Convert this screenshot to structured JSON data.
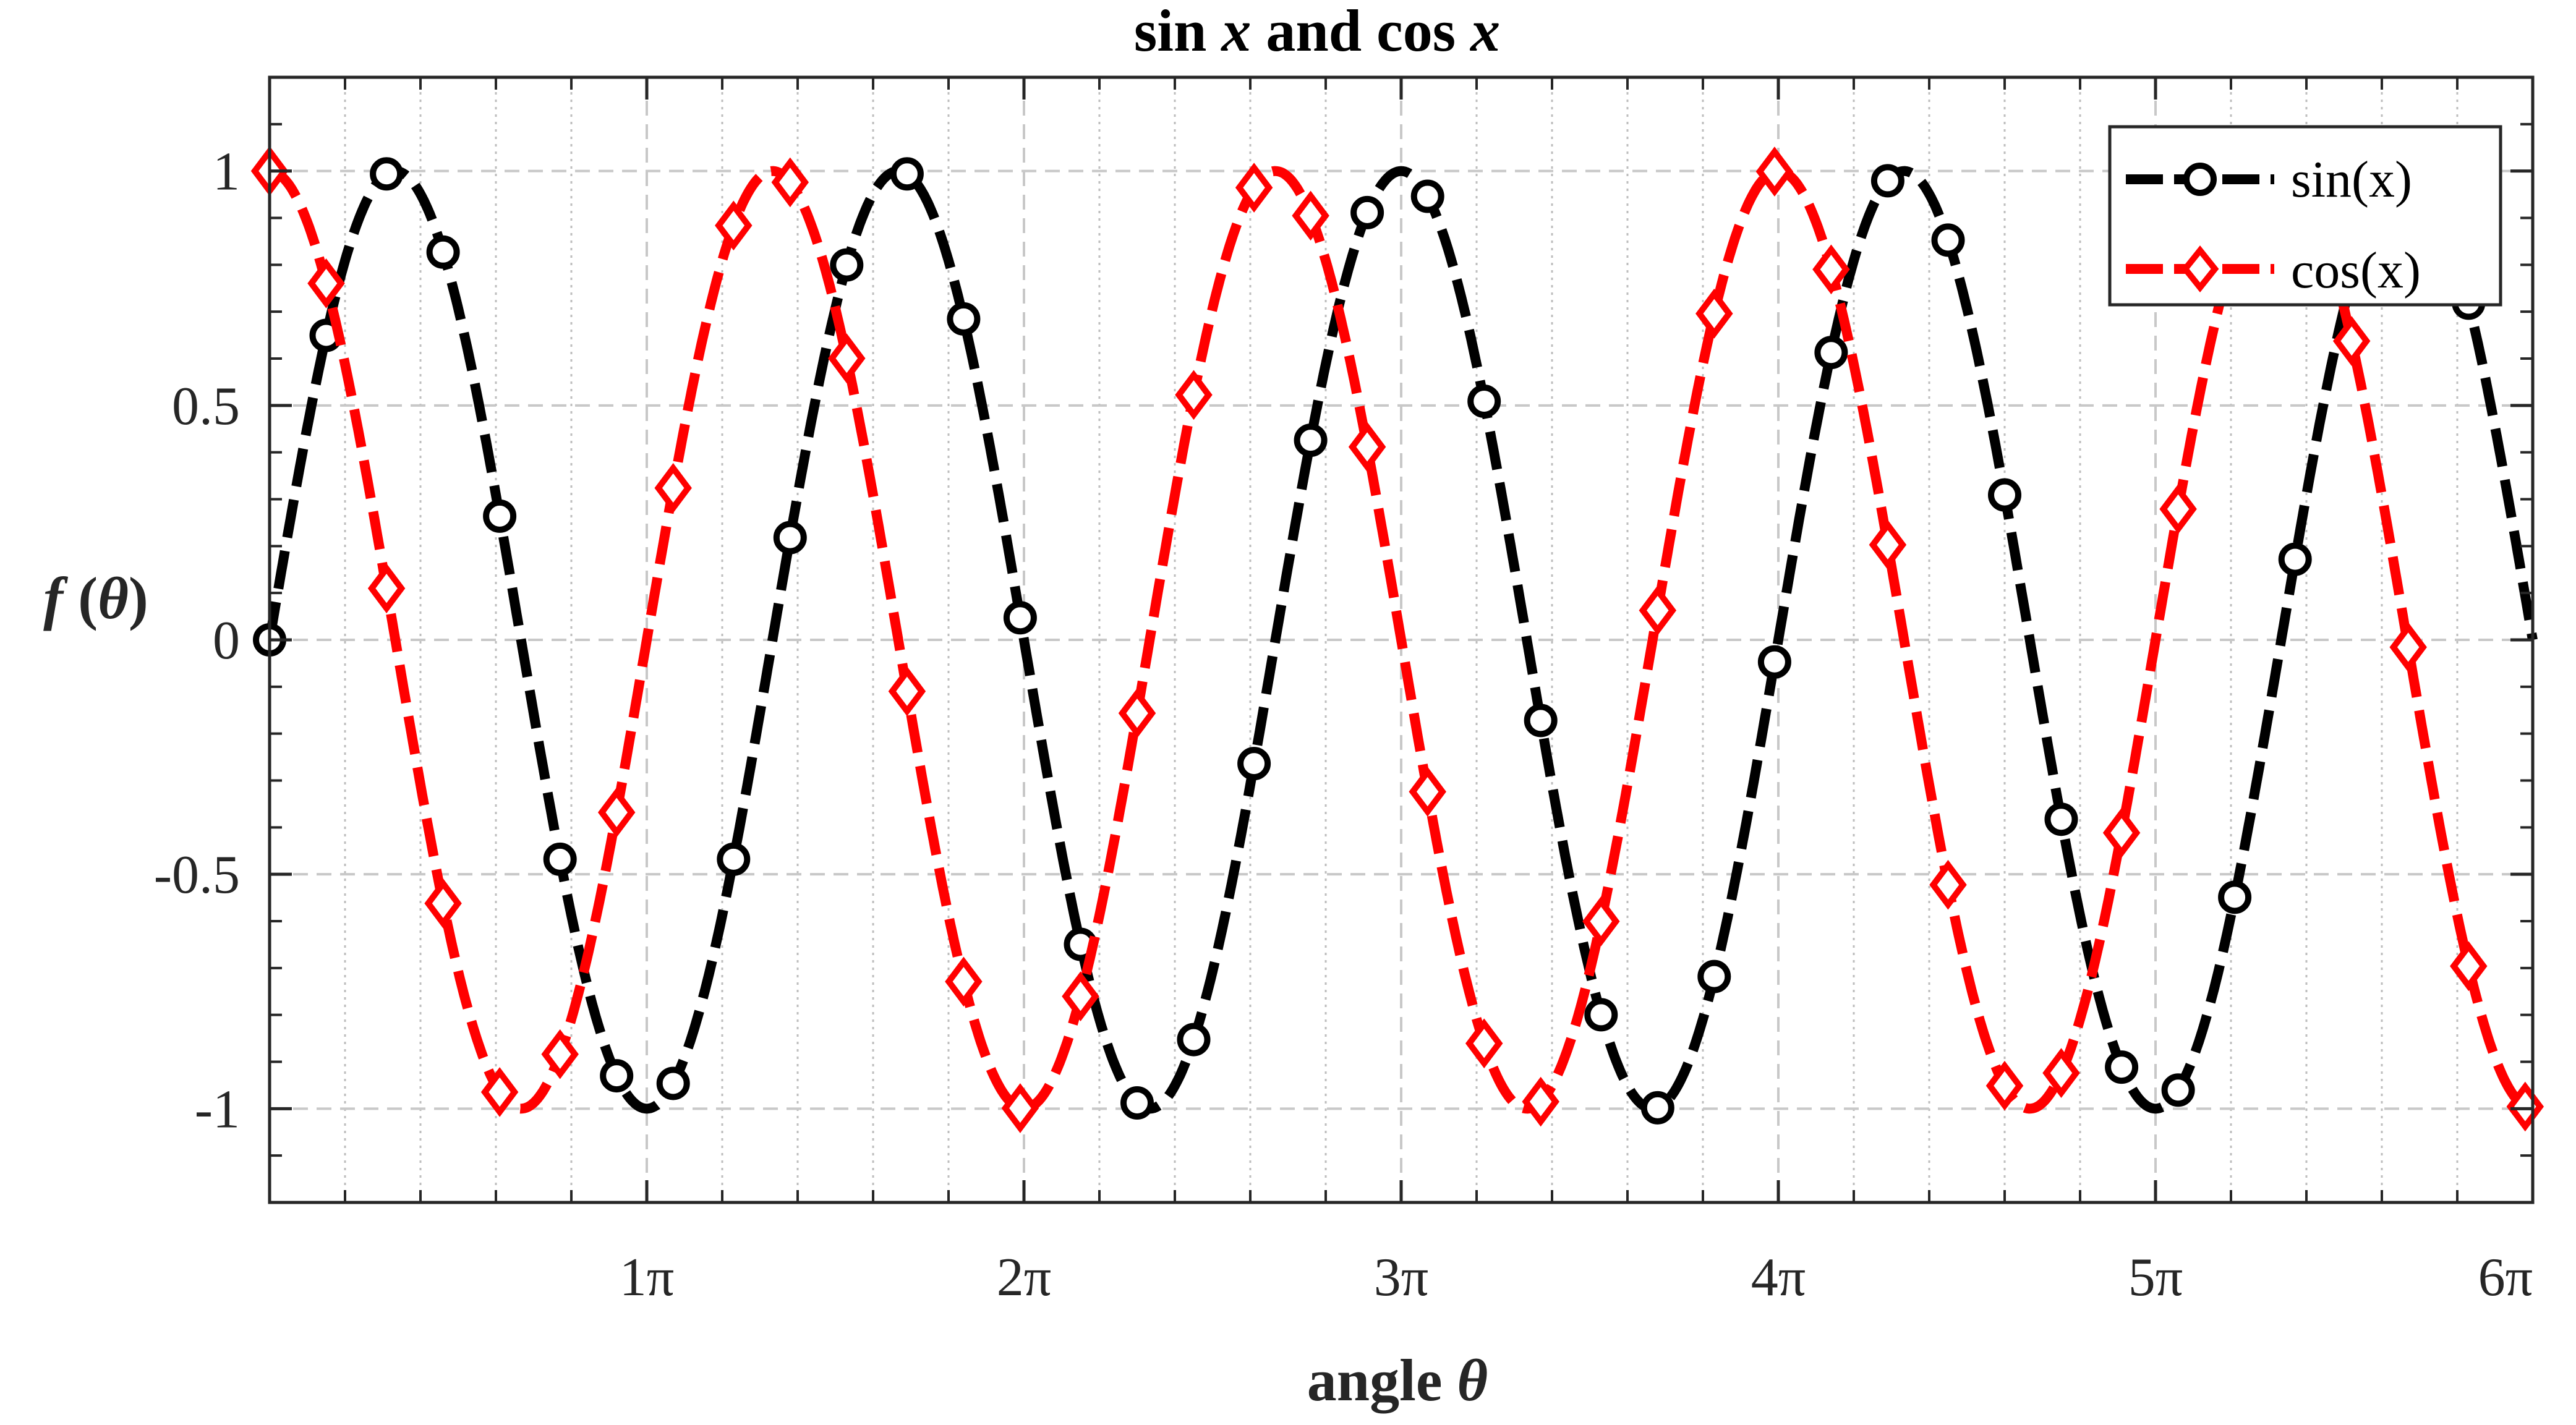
{
  "chart_data": {
    "type": "line",
    "title": {
      "pre": "sin ",
      "v1": "x",
      "mid": " and cos ",
      "v2": "x"
    },
    "xlabel": {
      "text": "angle ",
      "sym": "θ"
    },
    "ylabel": {
      "f": "f",
      "open": " (",
      "sym": "θ",
      "close": ")"
    },
    "xlim": [
      0,
      6
    ],
    "ylim": [
      -1.2,
      1.2
    ],
    "x_unit": "π",
    "x_ticks": [
      {
        "value": 1,
        "label": "1π"
      },
      {
        "value": 2,
        "label": "2π"
      },
      {
        "value": 3,
        "label": "3π"
      },
      {
        "value": 4,
        "label": "4π"
      },
      {
        "value": 5,
        "label": "5π"
      },
      {
        "value": 6,
        "label": "6π"
      }
    ],
    "y_ticks": [
      {
        "value": 1,
        "label": "1"
      },
      {
        "value": 0.5,
        "label": "0.5"
      },
      {
        "value": 0,
        "label": "0"
      },
      {
        "value": -0.5,
        "label": "-0.5"
      },
      {
        "value": -1,
        "label": "-1"
      }
    ],
    "x_minor_step": 0.2,
    "grid": true,
    "legend_position": "top-right",
    "series": [
      {
        "name": "sin(x)",
        "function": "sin",
        "frequency": 1.5,
        "color": "#000000",
        "marker": "circle",
        "line_style": "dashed",
        "marker_x": [
          0.0,
          0.15,
          0.31,
          0.46,
          0.61,
          0.77,
          0.92,
          1.07,
          1.23,
          1.38,
          1.53,
          1.69,
          1.84,
          1.99,
          2.15,
          2.3,
          2.45,
          2.61,
          2.76,
          2.91,
          3.07,
          3.22,
          3.37,
          3.53,
          3.68,
          3.83,
          3.99,
          4.14,
          4.29,
          4.45,
          4.6,
          4.75,
          4.91,
          5.06,
          5.21,
          5.37,
          5.52,
          5.67,
          5.83
        ]
      },
      {
        "name": "cos(x)",
        "function": "cos",
        "frequency": 1.5,
        "color": "#ff0000",
        "marker": "diamond",
        "line_style": "dashed",
        "marker_x": [
          0.0,
          0.15,
          0.31,
          0.46,
          0.61,
          0.77,
          0.92,
          1.07,
          1.23,
          1.38,
          1.53,
          1.69,
          1.84,
          1.99,
          2.15,
          2.3,
          2.45,
          2.61,
          2.76,
          2.91,
          3.07,
          3.22,
          3.37,
          3.53,
          3.68,
          3.83,
          3.99,
          4.14,
          4.29,
          4.45,
          4.6,
          4.75,
          4.91,
          5.06,
          5.21,
          5.37,
          5.52,
          5.67,
          5.83,
          5.98
        ]
      }
    ]
  }
}
